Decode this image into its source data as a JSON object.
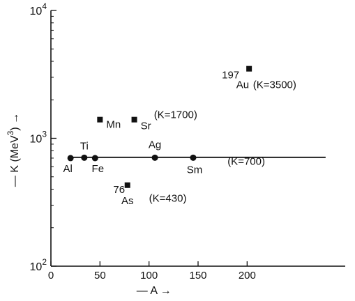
{
  "chart_data": {
    "type": "scatter",
    "xlabel": "A",
    "ylabel": "K (MeV",
    "ylabel_sup": "3",
    "ylabel_end": ")",
    "x_arrow": "→",
    "y_arrow": "→",
    "xlim": [
      0,
      300
    ],
    "ylim": [
      100,
      10000
    ],
    "y_scale": "log",
    "x_ticks": [
      {
        "value": 0,
        "label": "0"
      },
      {
        "value": 50,
        "label": "50"
      },
      {
        "value": 100,
        "label": "100"
      },
      {
        "value": 150,
        "label": "150"
      },
      {
        "value": 200,
        "label": "200"
      }
    ],
    "y_ticks": [
      {
        "value": 100,
        "base": "10",
        "exp": "2"
      },
      {
        "value": 1000,
        "base": "10",
        "exp": "3"
      },
      {
        "value": 10000,
        "base": "10",
        "exp": "4"
      }
    ],
    "circles": [
      {
        "label": "Al",
        "x": 20,
        "y": 700
      },
      {
        "label": "Ti",
        "x": 34,
        "y": 705
      },
      {
        "label": "Fe",
        "x": 45,
        "y": 700
      },
      {
        "label": "Ag",
        "x": 106,
        "y": 705
      },
      {
        "label": "Sm",
        "x": 145,
        "y": 705
      }
    ],
    "squares": [
      {
        "label": "Mn",
        "x": 50,
        "y": 1400
      },
      {
        "label": "Sr",
        "x": 85,
        "y": 1400
      },
      {
        "label": "As",
        "prefix": "76",
        "x": 78,
        "y": 430
      },
      {
        "label": "Au",
        "prefix": "197",
        "x": 202,
        "y": 3500
      }
    ],
    "fit_line": {
      "y": 710,
      "x_from": 20,
      "x_to": 280
    },
    "annotations": [
      {
        "id": "k1700",
        "text": "(K=1700)"
      },
      {
        "id": "k700",
        "text": "(K=700)"
      },
      {
        "id": "k430",
        "text": "(K=430)"
      },
      {
        "id": "k3500",
        "text": "(K=3500)"
      }
    ]
  }
}
